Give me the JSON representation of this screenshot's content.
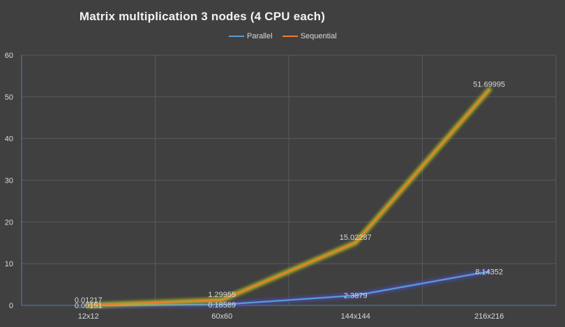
{
  "chart_data": {
    "type": "line",
    "title": "Matrix multiplication 3 nodes (4 CPU each)",
    "categories": [
      "12x12",
      "60x60",
      "144x144",
      "216x216"
    ],
    "series": [
      {
        "name": "Parallel",
        "color": "#5b9bd5",
        "values": [
          0.00151,
          0.18589,
          2.3879,
          8.14352
        ],
        "labels": [
          "0.00151",
          "0.18589",
          "2.3879",
          "8.14352"
        ]
      },
      {
        "name": "Sequential",
        "color": "#ed7d31",
        "values": [
          0.01217,
          1.29955,
          15.02287,
          51.69995
        ],
        "labels": [
          "0.01217",
          "1.29955",
          "15.02287",
          "51.69995"
        ]
      }
    ],
    "yticks": [
      "0",
      "10",
      "20",
      "30",
      "40",
      "50",
      "60"
    ],
    "ylim": [
      0,
      60
    ],
    "grid": true,
    "legend_position": "top"
  }
}
